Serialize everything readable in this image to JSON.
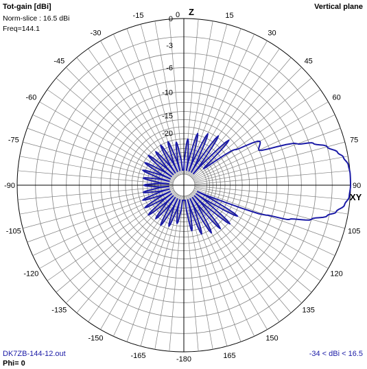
{
  "header": {
    "title": "Tot-gain [dBi]",
    "norm_slice": "Norm-slice : 16.5 dBi",
    "freq": "Freq=144.1",
    "plane": "Vertical plane"
  },
  "footer": {
    "file": "DK7ZB-144-12.out",
    "phi": "Phi= 0",
    "range": "-34 < dBi < 16.5"
  },
  "axis_labels": {
    "z": "Z",
    "xy": "XY"
  },
  "colors": {
    "pattern": "#1a1aa6",
    "grid": "#808080",
    "text": "#000000"
  },
  "chart_data": {
    "type": "polar",
    "title": "Tot-gain [dBi]",
    "angle_ticks": [
      "0",
      "15",
      "30",
      "45",
      "60",
      "75",
      "90",
      "105",
      "120",
      "135",
      "150",
      "165",
      "-180",
      "-165",
      "-150",
      "-135",
      "-120",
      "-105",
      "-90",
      "-75",
      "-60",
      "-45",
      "-30",
      "-15"
    ],
    "radial_ticks": [
      "0",
      "-3",
      "-6",
      "-10",
      "-15",
      "-20"
    ],
    "radial_tick_values": [
      0,
      -3,
      -6,
      -10,
      -15,
      -20
    ],
    "radial_range_db": [
      -34,
      0
    ],
    "series": [
      {
        "angle_deg": [
          0,
          5,
          10,
          15,
          20,
          25,
          30,
          35,
          40,
          45,
          50,
          55,
          60,
          65,
          70,
          72,
          75,
          78,
          80,
          83,
          86,
          90,
          94,
          97,
          100,
          102,
          105,
          108,
          110,
          115,
          120,
          125,
          130,
          135,
          140,
          145,
          150,
          155,
          160,
          165,
          170,
          175,
          180,
          185,
          190,
          195,
          200,
          205,
          210,
          215,
          220,
          225,
          230,
          235,
          240,
          245,
          250,
          255,
          260,
          265,
          270,
          275,
          280,
          285,
          290,
          295,
          300,
          305,
          310,
          315,
          320,
          325,
          330,
          335,
          340,
          345,
          350,
          355
        ],
        "rel_db": [
          -34,
          -22,
          -34,
          -19.5,
          -34,
          -18.5,
          -34,
          -17.5,
          -34,
          -16.5,
          -32,
          -17,
          -11,
          -12,
          -5.5,
          -3.5,
          -2,
          -1,
          -0.5,
          -0.1,
          0,
          0,
          -0.1,
          -0.5,
          -1.3,
          -2.2,
          -4,
          -7,
          -11,
          -34,
          -17,
          -34,
          -17.5,
          -34,
          -18.5,
          -34,
          -19,
          -34,
          -20,
          -34,
          -22,
          -34,
          -34,
          -34,
          -25,
          -34,
          -23,
          -34,
          -22,
          -34,
          -23,
          -34,
          -22,
          -34,
          -22.5,
          -34,
          -23,
          -34,
          -24,
          -34,
          -24.5,
          -34,
          -24,
          -34,
          -23,
          -34,
          -22.5,
          -34,
          -22,
          -34,
          -23,
          -34,
          -22,
          -34,
          -22,
          -34,
          -23,
          -34
        ]
      }
    ]
  }
}
